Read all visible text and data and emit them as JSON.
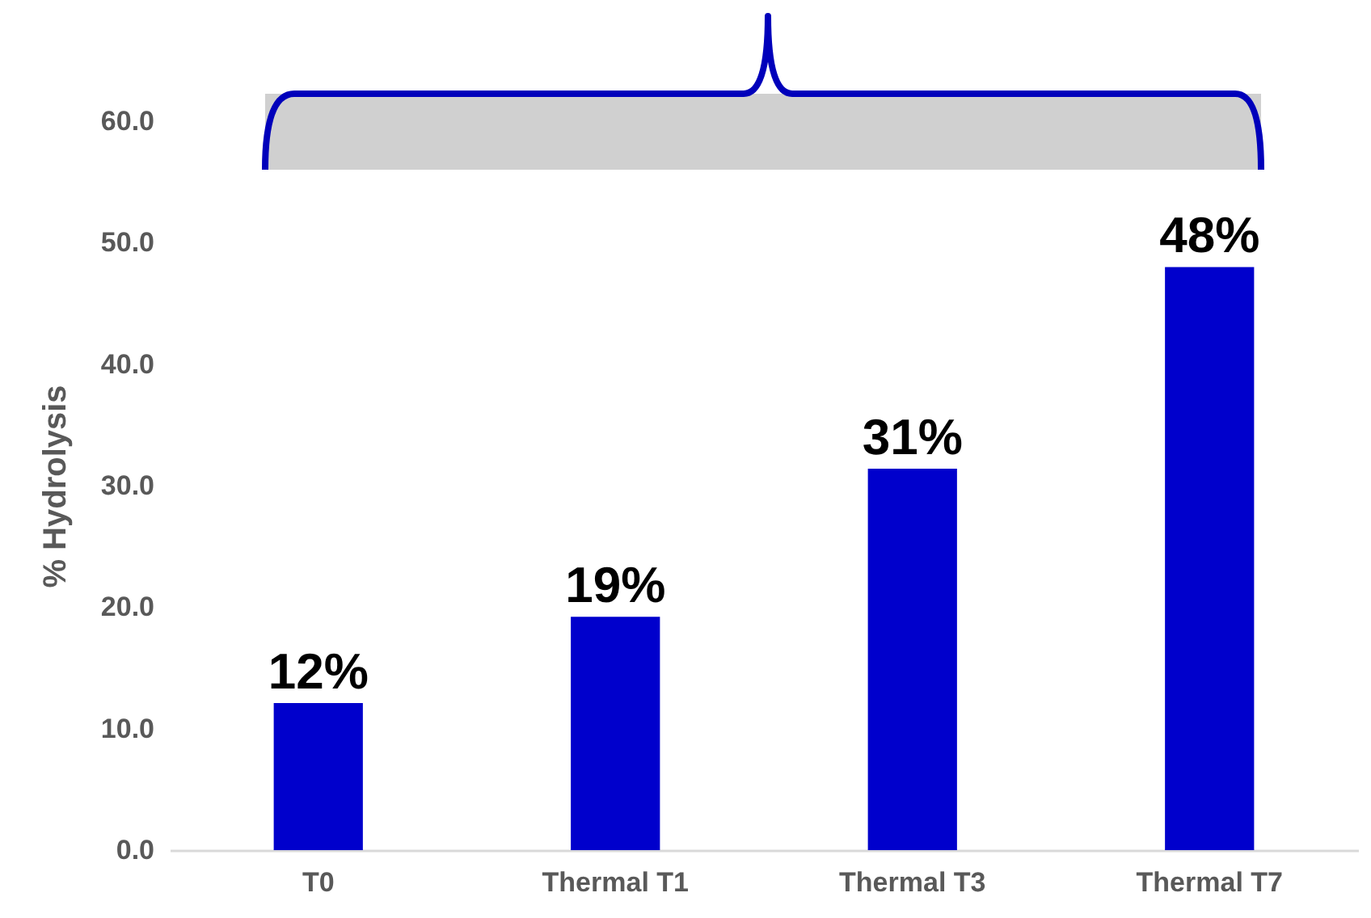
{
  "chart_data": {
    "type": "bar",
    "ylabel": "% Hydrolysis",
    "categories": [
      "T0",
      "Thermal T1",
      "Thermal T3",
      "Thermal T7"
    ],
    "values": [
      12.1,
      19.2,
      31.4,
      48.0
    ],
    "value_labels": [
      "12%",
      "19%",
      "31%",
      "48%"
    ],
    "color": "#0000cc",
    "ylim": [
      0,
      60
    ],
    "yticks": [
      {
        "value": 0,
        "label": "0.0"
      },
      {
        "value": 10,
        "label": "10.0"
      },
      {
        "value": 20,
        "label": "20.0"
      },
      {
        "value": 30,
        "label": "30.0"
      },
      {
        "value": 40,
        "label": "40.0"
      },
      {
        "value": 50,
        "label": "50.0"
      },
      {
        "value": 60,
        "label": "60.0"
      }
    ]
  }
}
